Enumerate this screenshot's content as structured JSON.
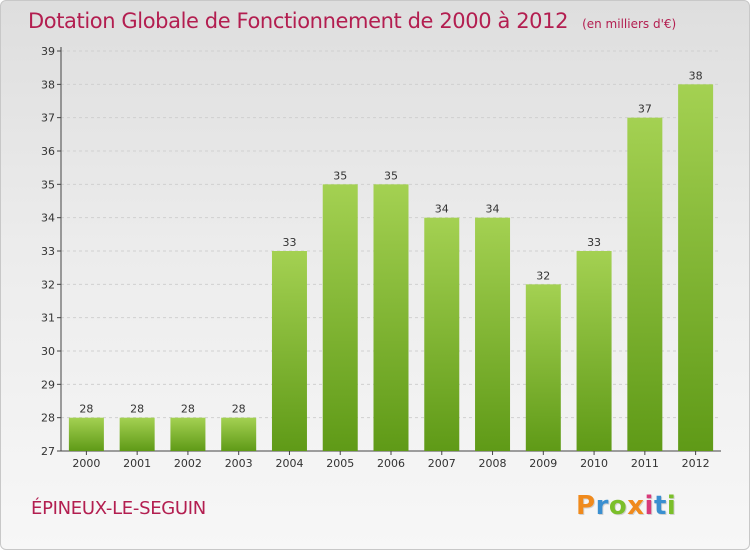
{
  "title": "Dotation Globale de Fonctionnement de 2000 à 2012",
  "unit_note": "(en milliers d'€)",
  "commune": "ÉPINEUX-LE-SEGUIN",
  "logo": {
    "text": "Proxiti",
    "letters": [
      {
        "char": "P",
        "color": "#f08a1c"
      },
      {
        "char": "r",
        "color": "#3a8fd0"
      },
      {
        "char": "o",
        "color": "#7bbf2a"
      },
      {
        "char": "x",
        "color": "#f08a1c"
      },
      {
        "char": "i",
        "color": "#d83a7a"
      },
      {
        "char": "t",
        "color": "#3a8fd0"
      },
      {
        "char": "i",
        "color": "#7bbf2a"
      }
    ]
  },
  "chart_data": {
    "type": "bar",
    "categories": [
      "2000",
      "2001",
      "2002",
      "2003",
      "2004",
      "2005",
      "2006",
      "2007",
      "2008",
      "2009",
      "2010",
      "2011",
      "2012"
    ],
    "values": [
      28,
      28,
      28,
      28,
      33,
      35,
      35,
      34,
      34,
      32,
      33,
      37,
      38
    ],
    "ylim": [
      27,
      39
    ],
    "yticks": [
      27,
      28,
      29,
      30,
      31,
      32,
      33,
      34,
      35,
      36,
      37,
      38,
      39
    ],
    "grid": true,
    "legend": "none",
    "colors": {
      "bar_top": "#a4d152",
      "bar_bottom": "#5f9a17",
      "grid": "#d0d0d0",
      "axis": "#444444"
    }
  }
}
